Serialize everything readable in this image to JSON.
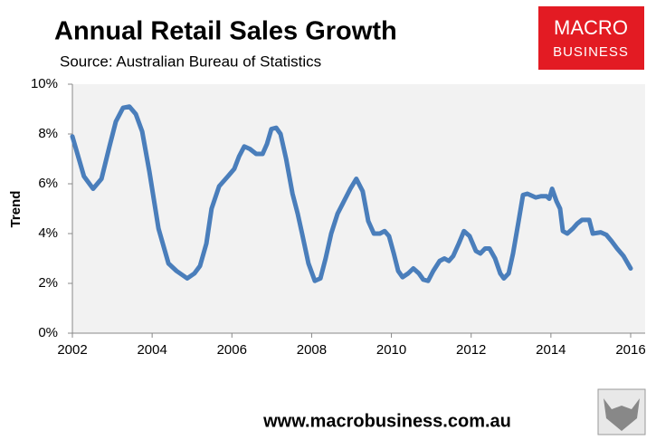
{
  "chart_data": {
    "type": "line",
    "title": "Annual Retail Sales Growth",
    "subtitle": "Source: Australian Bureau of Statistics",
    "y_label": "Trend",
    "xlim": [
      2002,
      2016
    ],
    "xticks": [
      2002,
      2004,
      2006,
      2008,
      2010,
      2012,
      2014,
      2016
    ],
    "ylim": [
      0,
      10
    ],
    "yticks": [
      {
        "value": 0,
        "label": "0%"
      },
      {
        "value": 2,
        "label": "2%"
      },
      {
        "value": 4,
        "label": "4%"
      },
      {
        "value": 6,
        "label": "6%"
      },
      {
        "value": 8,
        "label": "8%"
      },
      {
        "value": 10,
        "label": "10%"
      }
    ],
    "x": [
      2002.0,
      2002.29,
      2002.52,
      2002.73,
      2002.93,
      2003.09,
      2003.27,
      2003.43,
      2003.59,
      2003.75,
      2003.93,
      2004.16,
      2004.41,
      2004.61,
      2004.88,
      2005.06,
      2005.2,
      2005.36,
      2005.49,
      2005.68,
      2005.9,
      2006.06,
      2006.18,
      2006.31,
      2006.45,
      2006.61,
      2006.77,
      2006.88,
      2006.99,
      2007.11,
      2007.22,
      2007.36,
      2007.52,
      2007.65,
      2007.76,
      2007.92,
      2008.08,
      2008.22,
      2008.35,
      2008.49,
      2008.65,
      2008.81,
      2008.97,
      2009.12,
      2009.28,
      2009.42,
      2009.56,
      2009.71,
      2009.83,
      2009.94,
      2010.06,
      2010.17,
      2010.28,
      2010.42,
      2010.55,
      2010.69,
      2010.8,
      2010.92,
      2011.05,
      2011.21,
      2011.33,
      2011.44,
      2011.55,
      2011.69,
      2011.82,
      2011.96,
      2012.12,
      2012.23,
      2012.35,
      2012.46,
      2012.6,
      2012.73,
      2012.82,
      2012.94,
      2013.05,
      2013.19,
      2013.3,
      2013.41,
      2013.62,
      2013.75,
      2013.89,
      2013.96,
      2014.03,
      2014.14,
      2014.23,
      2014.3,
      2014.41,
      2014.55,
      2014.66,
      2014.78,
      2014.96,
      2015.05,
      2015.25,
      2015.39,
      2015.52,
      2015.66,
      2015.82,
      2016.0
    ],
    "series": [
      {
        "color": "#4a7ebb",
        "values": [
          7.9,
          6.3,
          5.8,
          6.2,
          7.5,
          8.5,
          9.05,
          9.1,
          8.8,
          8.1,
          6.5,
          4.2,
          2.8,
          2.5,
          2.2,
          2.4,
          2.7,
          3.6,
          5.0,
          5.9,
          6.3,
          6.6,
          7.1,
          7.5,
          7.4,
          7.2,
          7.2,
          7.6,
          8.2,
          8.25,
          8.0,
          7.0,
          5.6,
          4.8,
          4.0,
          2.8,
          2.1,
          2.2,
          3.0,
          4.0,
          4.8,
          5.3,
          5.8,
          6.2,
          5.7,
          4.5,
          4.0,
          4.0,
          4.1,
          3.9,
          3.2,
          2.5,
          2.25,
          2.4,
          2.6,
          2.4,
          2.15,
          2.1,
          2.5,
          2.9,
          3.0,
          2.9,
          3.1,
          3.6,
          4.1,
          3.9,
          3.3,
          3.2,
          3.4,
          3.4,
          3.0,
          2.4,
          2.2,
          2.4,
          3.2,
          4.5,
          5.55,
          5.6,
          5.45,
          5.5,
          5.5,
          5.4,
          5.8,
          5.3,
          5.0,
          4.1,
          4.0,
          4.2,
          4.4,
          4.55,
          4.55,
          4.0,
          4.05,
          3.95,
          3.7,
          3.4,
          3.1,
          2.6
        ]
      }
    ]
  },
  "logo": [
    "MACRO",
    "BUSINESS"
  ],
  "footer": "www.macrobusiness.com.au"
}
